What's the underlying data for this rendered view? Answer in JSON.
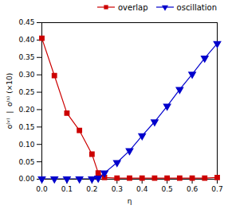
{
  "chart_data": {
    "type": "line",
    "xlabel": "η",
    "ylabel": "o⁽ᵛ⁾  |  o⁽ˢ⁾ (×10)",
    "xlim": [
      0.0,
      0.7
    ],
    "ylim": [
      0.0,
      0.45
    ],
    "xticks": [
      {
        "value": 0.0,
        "label": "0.0"
      },
      0.1,
      0.2,
      0.3,
      0.4,
      0.5,
      0.6,
      0.7
    ],
    "yticks": [
      {
        "value": 0.0,
        "label": "0.00"
      },
      0.05,
      {
        "value": 0.1,
        "label": "0.10"
      },
      0.15,
      {
        "value": 0.2,
        "label": "0.20"
      },
      0.25,
      {
        "value": 0.3,
        "label": "0.30"
      },
      0.35,
      {
        "value": 0.4,
        "label": "0.40"
      },
      0.45
    ],
    "grid": false,
    "legend": "upper right",
    "x": [
      0.0,
      0.05,
      0.1,
      0.15,
      0.2,
      0.225,
      0.25,
      0.3,
      0.35,
      0.4,
      0.45,
      0.5,
      0.55,
      0.6,
      0.65,
      0.7
    ],
    "series": [
      {
        "name": "overlap",
        "color": "#cc0000",
        "marker": "square",
        "values": [
          0.405,
          0.298,
          0.19,
          0.14,
          0.072,
          0.018,
          0.005,
          0.003,
          0.003,
          0.003,
          0.003,
          0.003,
          0.003,
          0.003,
          0.003,
          0.005
        ]
      },
      {
        "name": "oscillation",
        "color": "#0000cc",
        "marker": "triangle-down",
        "values": [
          0.001,
          0.001,
          0.001,
          0.001,
          0.001,
          0.003,
          0.018,
          0.048,
          0.082,
          0.125,
          0.165,
          0.21,
          0.258,
          0.302,
          0.348,
          0.39
        ]
      }
    ]
  }
}
